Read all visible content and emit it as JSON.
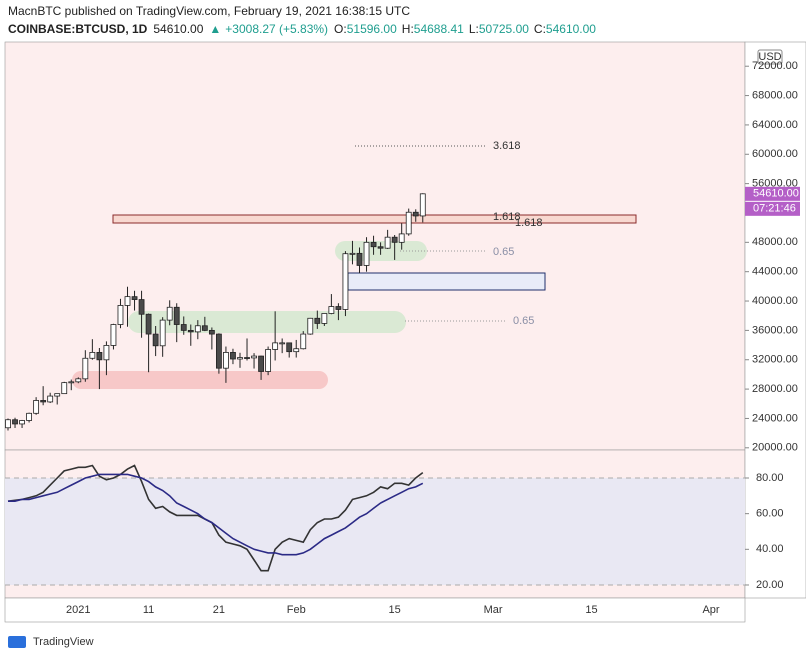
{
  "header": {
    "publisher_line": "MacnBTC published on TradingView.com, February 19, 2021 16:38:15 UTC",
    "symbol": "COINBASE:BTCUSD, 1D",
    "last": "54610.00",
    "arrow": "▲",
    "change": "+3008.27 (+5.83%)",
    "o_label": "O:",
    "open": "51596.00",
    "h_label": "H:",
    "high": "54688.41",
    "l_label": "L:",
    "low": "50725.00",
    "c_label": "C:",
    "close": "54610.00"
  },
  "footer": {
    "brand": "TradingView"
  },
  "chart_data": [
    {
      "type": "candlestick",
      "currency": "USD",
      "up_color": "#ffffff",
      "down_color": "#4a4a4a",
      "border_color": "#222222",
      "categories": [
        null,
        null,
        null,
        null,
        null,
        null,
        null,
        null,
        null,
        null,
        "2021",
        null,
        null,
        null,
        null,
        null,
        null,
        null,
        null,
        null,
        "11",
        null,
        null,
        null,
        null,
        null,
        null,
        null,
        null,
        null,
        "21",
        null,
        null,
        null,
        null,
        null,
        null,
        null,
        null,
        null,
        null,
        "Feb",
        null,
        null,
        null,
        null,
        null,
        null,
        null,
        null,
        null,
        null,
        null,
        null,
        null,
        "15",
        null,
        null,
        null,
        null,
        null,
        null,
        null,
        null,
        null,
        null,
        null,
        null,
        null,
        "Mar",
        null,
        null,
        null,
        null,
        null,
        null,
        null,
        null,
        null,
        null,
        null,
        null,
        null,
        "15",
        null,
        null,
        null,
        null,
        null,
        null,
        null,
        null,
        null,
        null,
        null,
        null,
        null,
        null,
        null,
        null,
        "Apr"
      ],
      "open": [
        22730,
        23825,
        23250,
        23720,
        24700,
        26450,
        26250,
        27050,
        27380,
        28880,
        28990,
        29400,
        32200,
        33000,
        31990,
        33950,
        36800,
        39400,
        40600,
        40200,
        38200,
        35500,
        33900,
        37400,
        39150,
        36800,
        36000,
        35800,
        36630,
        36000,
        35500,
        30850,
        33000,
        32100,
        32300,
        32250,
        32500,
        30400,
        33400,
        34300,
        34300,
        33100,
        33500,
        35500,
        37650,
        36950,
        38300,
        39250,
        38850,
        46450,
        46500,
        44850,
        48000,
        47400,
        47200,
        48700,
        48000,
        49150,
        52100,
        51596,
        null,
        null,
        null,
        null,
        null,
        null,
        null,
        null,
        null,
        null,
        null,
        null,
        null,
        null,
        null,
        null,
        null,
        null,
        null,
        null,
        null,
        null,
        null,
        null,
        null,
        null,
        null,
        null,
        null,
        null,
        null,
        null,
        null,
        null,
        null,
        null,
        null,
        null,
        null,
        null,
        null
      ],
      "high": [
        24000,
        24100,
        23800,
        24790,
        26900,
        28400,
        27500,
        27400,
        28990,
        29300,
        29600,
        33300,
        34800,
        33600,
        34500,
        36900,
        40300,
        41950,
        41400,
        41400,
        38300,
        36600,
        37800,
        40100,
        39700,
        37900,
        36800,
        37400,
        37850,
        36400,
        35600,
        33800,
        33500,
        32950,
        34900,
        32900,
        32550,
        33800,
        38600,
        34900,
        34350,
        34700,
        35900,
        37700,
        38700,
        38300,
        40950,
        39700,
        46800,
        48200,
        47300,
        48700,
        48900,
        48000,
        49700,
        49000,
        50600,
        52600,
        52500,
        54688.41,
        null,
        null,
        null,
        null,
        null,
        null,
        null,
        null,
        null,
        null,
        null,
        null,
        null,
        null,
        null,
        null,
        null,
        null,
        null,
        null,
        null,
        null,
        null,
        null,
        null,
        null,
        null,
        null,
        null,
        null,
        null,
        null,
        null,
        null,
        null,
        null,
        null,
        null,
        null,
        null,
        null
      ],
      "low": [
        22350,
        22700,
        22700,
        23450,
        24500,
        25800,
        26100,
        25900,
        27330,
        27850,
        28800,
        29000,
        32000,
        28000,
        29900,
        33400,
        36300,
        36500,
        38700,
        35000,
        30300,
        32500,
        32400,
        36700,
        34400,
        35400,
        33900,
        34800,
        35900,
        33400,
        30100,
        28850,
        31400,
        30900,
        31900,
        30800,
        29250,
        29900,
        31900,
        32900,
        32300,
        32300,
        33400,
        35400,
        36200,
        36600,
        38200,
        37400,
        37950,
        45000,
        43800,
        44000,
        46300,
        46300,
        47100,
        45600,
        47000,
        48900,
        50800,
        50725,
        null,
        null,
        null,
        null,
        null,
        null,
        null,
        null,
        null,
        null,
        null,
        null,
        null,
        null,
        null,
        null,
        null,
        null,
        null,
        null,
        null,
        null,
        null,
        null,
        null,
        null,
        null,
        null,
        null,
        null,
        null,
        null,
        null,
        null,
        null,
        null,
        null,
        null,
        null,
        null,
        null
      ],
      "close": [
        23825,
        23250,
        23720,
        24700,
        26450,
        26250,
        27050,
        27380,
        28880,
        28990,
        29400,
        32200,
        33000,
        31990,
        33950,
        36800,
        39400,
        40600,
        40200,
        38200,
        35500,
        33900,
        37400,
        39150,
        36800,
        36000,
        35800,
        36630,
        36000,
        35500,
        30850,
        33000,
        32100,
        32300,
        32250,
        32500,
        30400,
        33400,
        34300,
        34300,
        33100,
        33500,
        35500,
        37650,
        36950,
        38300,
        39250,
        38850,
        46450,
        46500,
        44850,
        48000,
        47400,
        47200,
        48700,
        48000,
        49150,
        52100,
        51596,
        54610,
        null,
        null,
        null,
        null,
        null,
        null,
        null,
        null,
        null,
        null,
        null,
        null,
        null,
        null,
        null,
        null,
        null,
        null,
        null,
        null,
        null,
        null,
        null,
        null,
        null,
        null,
        null,
        null,
        null,
        null,
        null,
        null,
        null,
        null,
        null,
        null,
        null,
        null,
        null,
        null,
        null
      ],
      "ylim": [
        19700,
        75300
      ],
      "yticks": [
        {
          "value": 72000,
          "label": "72000.00"
        },
        {
          "value": 68000,
          "label": "68000.00"
        },
        {
          "value": 64000,
          "label": "64000.00"
        },
        {
          "value": 60000,
          "label": "60000.00"
        },
        {
          "value": 56000,
          "label": "56000.00"
        },
        {
          "value": 48000,
          "label": "48000.00"
        },
        {
          "value": 44000,
          "label": "44000.00"
        },
        {
          "value": 40000,
          "label": "40000.00"
        },
        {
          "value": 36000,
          "label": "36000.00"
        },
        {
          "value": 32000,
          "label": "32000.00"
        },
        {
          "value": 28000,
          "label": "28000.00"
        },
        {
          "value": 24000,
          "label": "24000.00"
        },
        {
          "value": 20000,
          "label": "20000.00"
        }
      ],
      "last_price": {
        "value": 54610,
        "label": "54610.00"
      },
      "countdown": "07:21:46",
      "marker_color": "#b45fc7",
      "annotations": [
        "3.618",
        "1.618",
        "1.618",
        "0.65",
        "0.65"
      ]
    },
    {
      "type": "line",
      "ylim": [
        12.7,
        95.7
      ],
      "band": [
        20,
        80
      ],
      "yticks": [
        {
          "value": 80,
          "label": "80.00"
        },
        {
          "value": 60,
          "label": "60.00"
        },
        {
          "value": 40,
          "label": "40.00"
        },
        {
          "value": 20,
          "label": "20.00"
        }
      ],
      "series": [
        {
          "color": "#333333",
          "values": [
            67,
            67.5,
            68,
            69,
            70,
            72,
            76,
            80,
            84,
            85,
            86,
            86,
            87,
            81,
            79,
            80,
            82,
            85,
            87,
            78,
            68,
            63,
            64,
            61,
            59,
            59,
            59,
            59,
            57,
            55,
            48,
            44,
            43,
            42,
            40,
            34,
            28,
            28,
            40,
            44,
            46,
            45,
            44,
            51,
            55,
            57,
            57,
            58,
            62,
            68,
            69,
            70,
            72,
            75,
            74,
            77,
            77,
            76,
            80,
            83,
            null,
            null,
            null,
            null,
            null,
            null,
            null,
            null,
            null,
            null,
            null,
            null,
            null,
            null,
            null,
            null,
            null,
            null,
            null,
            null,
            null,
            null,
            null,
            null,
            null,
            null,
            null,
            null,
            null,
            null,
            null,
            null,
            null,
            null,
            null,
            null,
            null,
            null,
            null,
            null,
            null
          ]
        },
        {
          "color": "#2b2a86",
          "values": [
            67,
            67,
            68,
            68,
            69,
            70,
            71,
            72,
            74,
            76,
            78,
            80,
            81,
            82,
            82,
            82,
            82,
            82,
            81,
            80,
            78,
            75,
            73,
            70,
            66,
            64,
            62,
            60,
            57,
            55,
            52,
            49,
            46,
            44,
            42,
            40,
            39,
            38,
            38,
            37,
            37,
            37,
            38,
            40,
            43,
            46,
            48,
            50,
            52,
            55,
            58,
            60,
            63,
            66,
            68,
            70,
            72,
            74,
            75,
            77,
            null,
            null,
            null,
            null,
            null,
            null,
            null,
            null,
            null,
            null,
            null,
            null,
            null,
            null,
            null,
            null,
            null,
            null,
            null,
            null,
            null,
            null,
            null,
            null,
            null,
            null,
            null,
            null,
            null,
            null,
            null,
            null,
            null,
            null,
            null,
            null,
            null,
            null,
            null,
            null,
            null
          ]
        }
      ]
    }
  ]
}
